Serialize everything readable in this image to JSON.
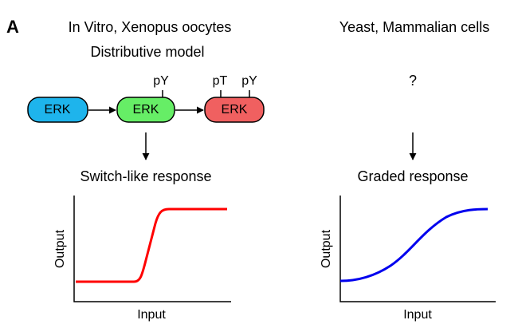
{
  "panel_label": "A",
  "left": {
    "title": "In Vitro, Xenopus oocytes",
    "subtitle": "Distributive model",
    "nodes": [
      {
        "label": "ERK"
      },
      {
        "label": "ERK",
        "sites": [
          "pY"
        ]
      },
      {
        "label": "ERK",
        "sites": [
          "pT",
          "pY"
        ]
      }
    ],
    "response": "Switch-like response",
    "x_label": "Input",
    "y_label": "Output"
  },
  "right": {
    "title": "Yeast, Mammalian cells",
    "mechanism": "?",
    "response": "Graded response",
    "x_label": "Input",
    "y_label": "Output"
  }
}
